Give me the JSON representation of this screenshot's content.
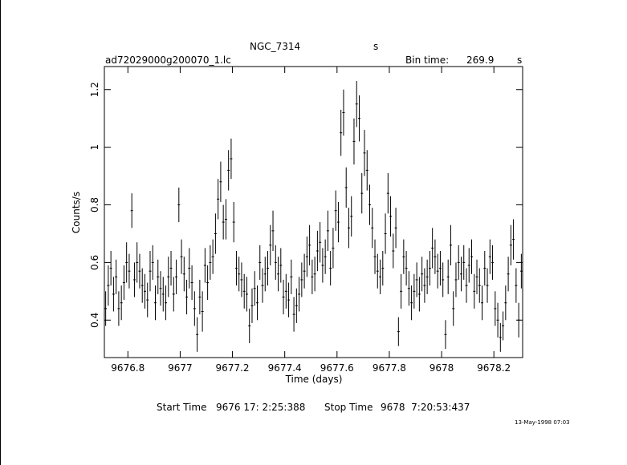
{
  "header": {
    "object": "NGC_7314",
    "object_unit": "s",
    "file": "ad72029000g200070_1.lc",
    "bin_label": "Bin time:",
    "bin_value": "269.9",
    "bin_unit": "s"
  },
  "footer": {
    "start_label": "Start Time",
    "start_value": "9676 17: 2:25:388",
    "stop_label": "Stop Time",
    "stop_value": "9678  7:20:53:437",
    "date_stamp": "13-May-1998 07:03"
  },
  "chart_data": {
    "type": "scatter",
    "xlabel": "Time (days)",
    "ylabel": "Counts/s",
    "xlim": [
      9676.71,
      9678.31
    ],
    "ylim": [
      0.27,
      1.28
    ],
    "xticks": [
      9676.8,
      9677,
      9677.2,
      9677.4,
      9677.6,
      9677.8,
      9678,
      9678.2
    ],
    "xtick_labels": [
      "9676.8",
      "9677",
      "9677.2",
      "9677.4",
      "9677.6",
      "9677.8",
      "9678",
      "9678.2"
    ],
    "yticks": [
      0.4,
      0.6,
      0.8,
      1.0,
      1.2
    ],
    "ytick_labels": [
      "0.4",
      "0.6",
      "0.8",
      "1",
      "1.2"
    ],
    "grid": false,
    "series": [
      {
        "x": [
          9676.715,
          9676.725,
          9676.735,
          9676.745,
          9676.755,
          9676.765,
          9676.775,
          9676.785,
          9676.795,
          9676.805,
          9676.815,
          9676.825,
          9676.835,
          9676.845,
          9676.855,
          9676.865,
          9676.875,
          9676.885,
          9676.895,
          9676.905,
          9676.915,
          9676.925,
          9676.935,
          9676.945,
          9676.955,
          9676.965,
          9676.975,
          9676.985,
          9676.995,
          9677.005,
          9677.015,
          9677.025,
          9677.035,
          9677.045,
          9677.055,
          9677.065,
          9677.075,
          9677.085,
          9677.095,
          9677.105,
          9677.115,
          9677.125,
          9677.135,
          9677.145,
          9677.155,
          9677.165,
          9677.175,
          9677.185,
          9677.195,
          9677.205,
          9677.215,
          9677.225,
          9677.235,
          9677.245,
          9677.255,
          9677.265,
          9677.275,
          9677.285,
          9677.295,
          9677.305,
          9677.315,
          9677.325,
          9677.335,
          9677.345,
          9677.355,
          9677.365,
          9677.375,
          9677.385,
          9677.395,
          9677.405,
          9677.415,
          9677.425,
          9677.435,
          9677.445,
          9677.455,
          9677.465,
          9677.475,
          9677.485,
          9677.495,
          9677.505,
          9677.515,
          9677.525,
          9677.535,
          9677.545,
          9677.555,
          9677.565,
          9677.575,
          9677.585,
          9677.595,
          9677.605,
          9677.615,
          9677.625,
          9677.635,
          9677.645,
          9677.655,
          9677.665,
          9677.675,
          9677.685,
          9677.695,
          9677.705,
          9677.715,
          9677.725,
          9677.735,
          9677.745,
          9677.755,
          9677.765,
          9677.775,
          9677.785,
          9677.795,
          9677.805,
          9677.815,
          9677.825,
          9677.835,
          9677.845,
          9677.855,
          9677.865,
          9677.875,
          9677.885,
          9677.895,
          9677.905,
          9677.915,
          9677.925,
          9677.935,
          9677.945,
          9677.955,
          9677.965,
          9677.975,
          9677.985,
          9677.995,
          9678.005,
          9678.015,
          9678.025,
          9678.035,
          9678.045,
          9678.055,
          9678.065,
          9678.075,
          9678.085,
          9678.095,
          9678.105,
          9678.115,
          9678.125,
          9678.135,
          9678.145,
          9678.155,
          9678.165,
          9678.175,
          9678.185,
          9678.195,
          9678.205,
          9678.215,
          9678.225,
          9678.235,
          9678.245,
          9678.255,
          9678.265,
          9678.275,
          9678.285,
          9678.295,
          9678.305
        ],
        "y": [
          0.44,
          0.52,
          0.58,
          0.49,
          0.55,
          0.44,
          0.46,
          0.53,
          0.6,
          0.57,
          0.78,
          0.54,
          0.6,
          0.57,
          0.52,
          0.5,
          0.47,
          0.57,
          0.6,
          0.46,
          0.55,
          0.51,
          0.49,
          0.46,
          0.55,
          0.58,
          0.49,
          0.55,
          0.8,
          0.62,
          0.56,
          0.48,
          0.58,
          0.53,
          0.44,
          0.35,
          0.48,
          0.43,
          0.59,
          0.53,
          0.6,
          0.62,
          0.7,
          0.82,
          0.88,
          0.74,
          0.75,
          0.92,
          0.96,
          0.74,
          0.58,
          0.56,
          0.54,
          0.5,
          0.49,
          0.38,
          0.45,
          0.51,
          0.46,
          0.6,
          0.52,
          0.56,
          0.58,
          0.66,
          0.71,
          0.6,
          0.56,
          0.59,
          0.48,
          0.5,
          0.47,
          0.55,
          0.42,
          0.45,
          0.49,
          0.54,
          0.57,
          0.62,
          0.66,
          0.55,
          0.56,
          0.64,
          0.67,
          0.59,
          0.62,
          0.71,
          0.58,
          0.65,
          0.78,
          0.74,
          1.05,
          1.12,
          0.86,
          0.72,
          0.76,
          1.02,
          1.15,
          1.1,
          0.84,
          0.98,
          0.92,
          0.8,
          0.72,
          0.62,
          0.57,
          0.55,
          0.58,
          0.7,
          0.84,
          0.76,
          0.64,
          0.72,
          0.36,
          0.5,
          0.62,
          0.58,
          0.51,
          0.46,
          0.5,
          0.54,
          0.49,
          0.56,
          0.52,
          0.55,
          0.58,
          0.65,
          0.62,
          0.57,
          0.58,
          0.54,
          0.35,
          0.55,
          0.66,
          0.44,
          0.54,
          0.6,
          0.56,
          0.6,
          0.52,
          0.59,
          0.62,
          0.5,
          0.55,
          0.52,
          0.46,
          0.58,
          0.52,
          0.62,
          0.6,
          0.44,
          0.4,
          0.34,
          0.38,
          0.46,
          0.56,
          0.66,
          0.68,
          0.52,
          0.4,
          0.57
        ],
        "err": [
          0.06,
          0.07,
          0.06,
          0.06,
          0.06,
          0.06,
          0.06,
          0.06,
          0.07,
          0.06,
          0.06,
          0.06,
          0.07,
          0.06,
          0.06,
          0.06,
          0.06,
          0.07,
          0.06,
          0.06,
          0.06,
          0.06,
          0.06,
          0.06,
          0.07,
          0.06,
          0.06,
          0.06,
          0.06,
          0.06,
          0.06,
          0.06,
          0.07,
          0.06,
          0.06,
          0.06,
          0.06,
          0.07,
          0.06,
          0.06,
          0.06,
          0.06,
          0.07,
          0.07,
          0.07,
          0.06,
          0.07,
          0.07,
          0.07,
          0.07,
          0.06,
          0.06,
          0.06,
          0.06,
          0.06,
          0.06,
          0.06,
          0.06,
          0.06,
          0.06,
          0.06,
          0.06,
          0.06,
          0.07,
          0.07,
          0.06,
          0.06,
          0.06,
          0.06,
          0.06,
          0.06,
          0.06,
          0.06,
          0.06,
          0.06,
          0.06,
          0.06,
          0.07,
          0.07,
          0.06,
          0.06,
          0.07,
          0.07,
          0.06,
          0.06,
          0.07,
          0.06,
          0.07,
          0.07,
          0.07,
          0.08,
          0.08,
          0.07,
          0.07,
          0.07,
          0.08,
          0.08,
          0.08,
          0.07,
          0.08,
          0.07,
          0.07,
          0.07,
          0.06,
          0.06,
          0.06,
          0.06,
          0.07,
          0.07,
          0.07,
          0.06,
          0.07,
          0.05,
          0.06,
          0.06,
          0.06,
          0.06,
          0.06,
          0.06,
          0.06,
          0.06,
          0.06,
          0.06,
          0.06,
          0.06,
          0.07,
          0.06,
          0.06,
          0.06,
          0.06,
          0.05,
          0.06,
          0.07,
          0.06,
          0.06,
          0.06,
          0.06,
          0.06,
          0.06,
          0.06,
          0.06,
          0.06,
          0.06,
          0.06,
          0.06,
          0.06,
          0.06,
          0.06,
          0.06,
          0.06,
          0.06,
          0.05,
          0.05,
          0.06,
          0.06,
          0.07,
          0.07,
          0.06,
          0.06,
          0.06
        ]
      }
    ]
  }
}
